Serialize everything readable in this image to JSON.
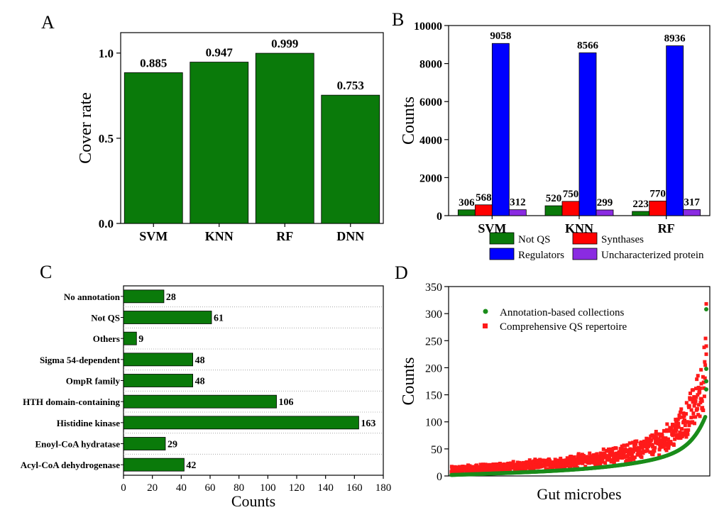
{
  "colors": {
    "green": "#0a7a0a",
    "red": "#ff0000",
    "blue": "#0000ff",
    "purple": "#8a2be2",
    "scatter_green": "#1a8c1a",
    "scatter_red": "#ff1a1a"
  },
  "chart_data": [
    {
      "panel": "A",
      "type": "bar",
      "categories": [
        "SVM",
        "KNN",
        "RF",
        "DNN"
      ],
      "values": [
        0.885,
        0.947,
        0.999,
        0.753
      ],
      "value_labels": [
        "0.885",
        "0.947",
        "0.999",
        "0.753"
      ],
      "xlabel": "",
      "ylabel": "Cover rate",
      "ylim": [
        0,
        1.12
      ],
      "yticks": [
        0,
        0.5,
        1.0
      ],
      "ytick_labels": [
        "0.0",
        "0.5",
        "1.0"
      ],
      "color": "#0a7a0a"
    },
    {
      "panel": "B",
      "type": "bar",
      "categories": [
        "SVM",
        "KNN",
        "RF"
      ],
      "series": [
        {
          "name": "Not QS",
          "values": [
            306,
            520,
            223
          ],
          "color": "#0a7a0a"
        },
        {
          "name": "Synthases",
          "values": [
            568,
            750,
            770
          ],
          "color": "#ff0000"
        },
        {
          "name": "Regulators",
          "values": [
            9058,
            8566,
            8936
          ],
          "color": "#0000ff"
        },
        {
          "name": "Uncharacterized protein",
          "values": [
            312,
            299,
            317
          ],
          "color": "#8a2be2"
        }
      ],
      "xlabel": "",
      "ylabel": "Counts",
      "ylim": [
        0,
        10000
      ],
      "yticks": [
        0,
        2000,
        4000,
        6000,
        8000,
        10000
      ],
      "legend_position": "bottom"
    },
    {
      "panel": "C",
      "type": "bar",
      "orientation": "horizontal",
      "categories": [
        "No annotation",
        "Not QS",
        "Others",
        "Sigma 54-dependent",
        "OmpR family",
        "HTH domain-containing",
        "Histidine kinase",
        "Enoyl-CoA hydratase",
        "Acyl-CoA dehydrogenase"
      ],
      "values": [
        28,
        61,
        9,
        48,
        48,
        106,
        163,
        29,
        42
      ],
      "xlabel": "Counts",
      "ylabel": "",
      "xlim": [
        0,
        180
      ],
      "xticks": [
        0,
        20,
        40,
        60,
        80,
        100,
        120,
        140,
        160,
        180
      ],
      "grid": "horizontal dotted",
      "color": "#0a7a0a"
    },
    {
      "panel": "D",
      "type": "scatter",
      "series": [
        {
          "name": "Annotation-based collections",
          "color": "#1a8c1a",
          "marker": "circle"
        },
        {
          "name": "Comprehensive QS repertoire",
          "color": "#ff1a1a",
          "marker": "square"
        }
      ],
      "xlabel": "Gut microbes",
      "ylabel": "Counts",
      "ylim": [
        0,
        350
      ],
      "yticks": [
        0,
        50,
        100,
        150,
        200,
        250,
        300,
        350
      ],
      "n_points_approx": 900,
      "max_values": [
        308,
        318
      ],
      "legend_position": "top-left"
    }
  ],
  "panel_labels": {
    "a": "A",
    "b": "B",
    "c": "C",
    "d": "D"
  }
}
